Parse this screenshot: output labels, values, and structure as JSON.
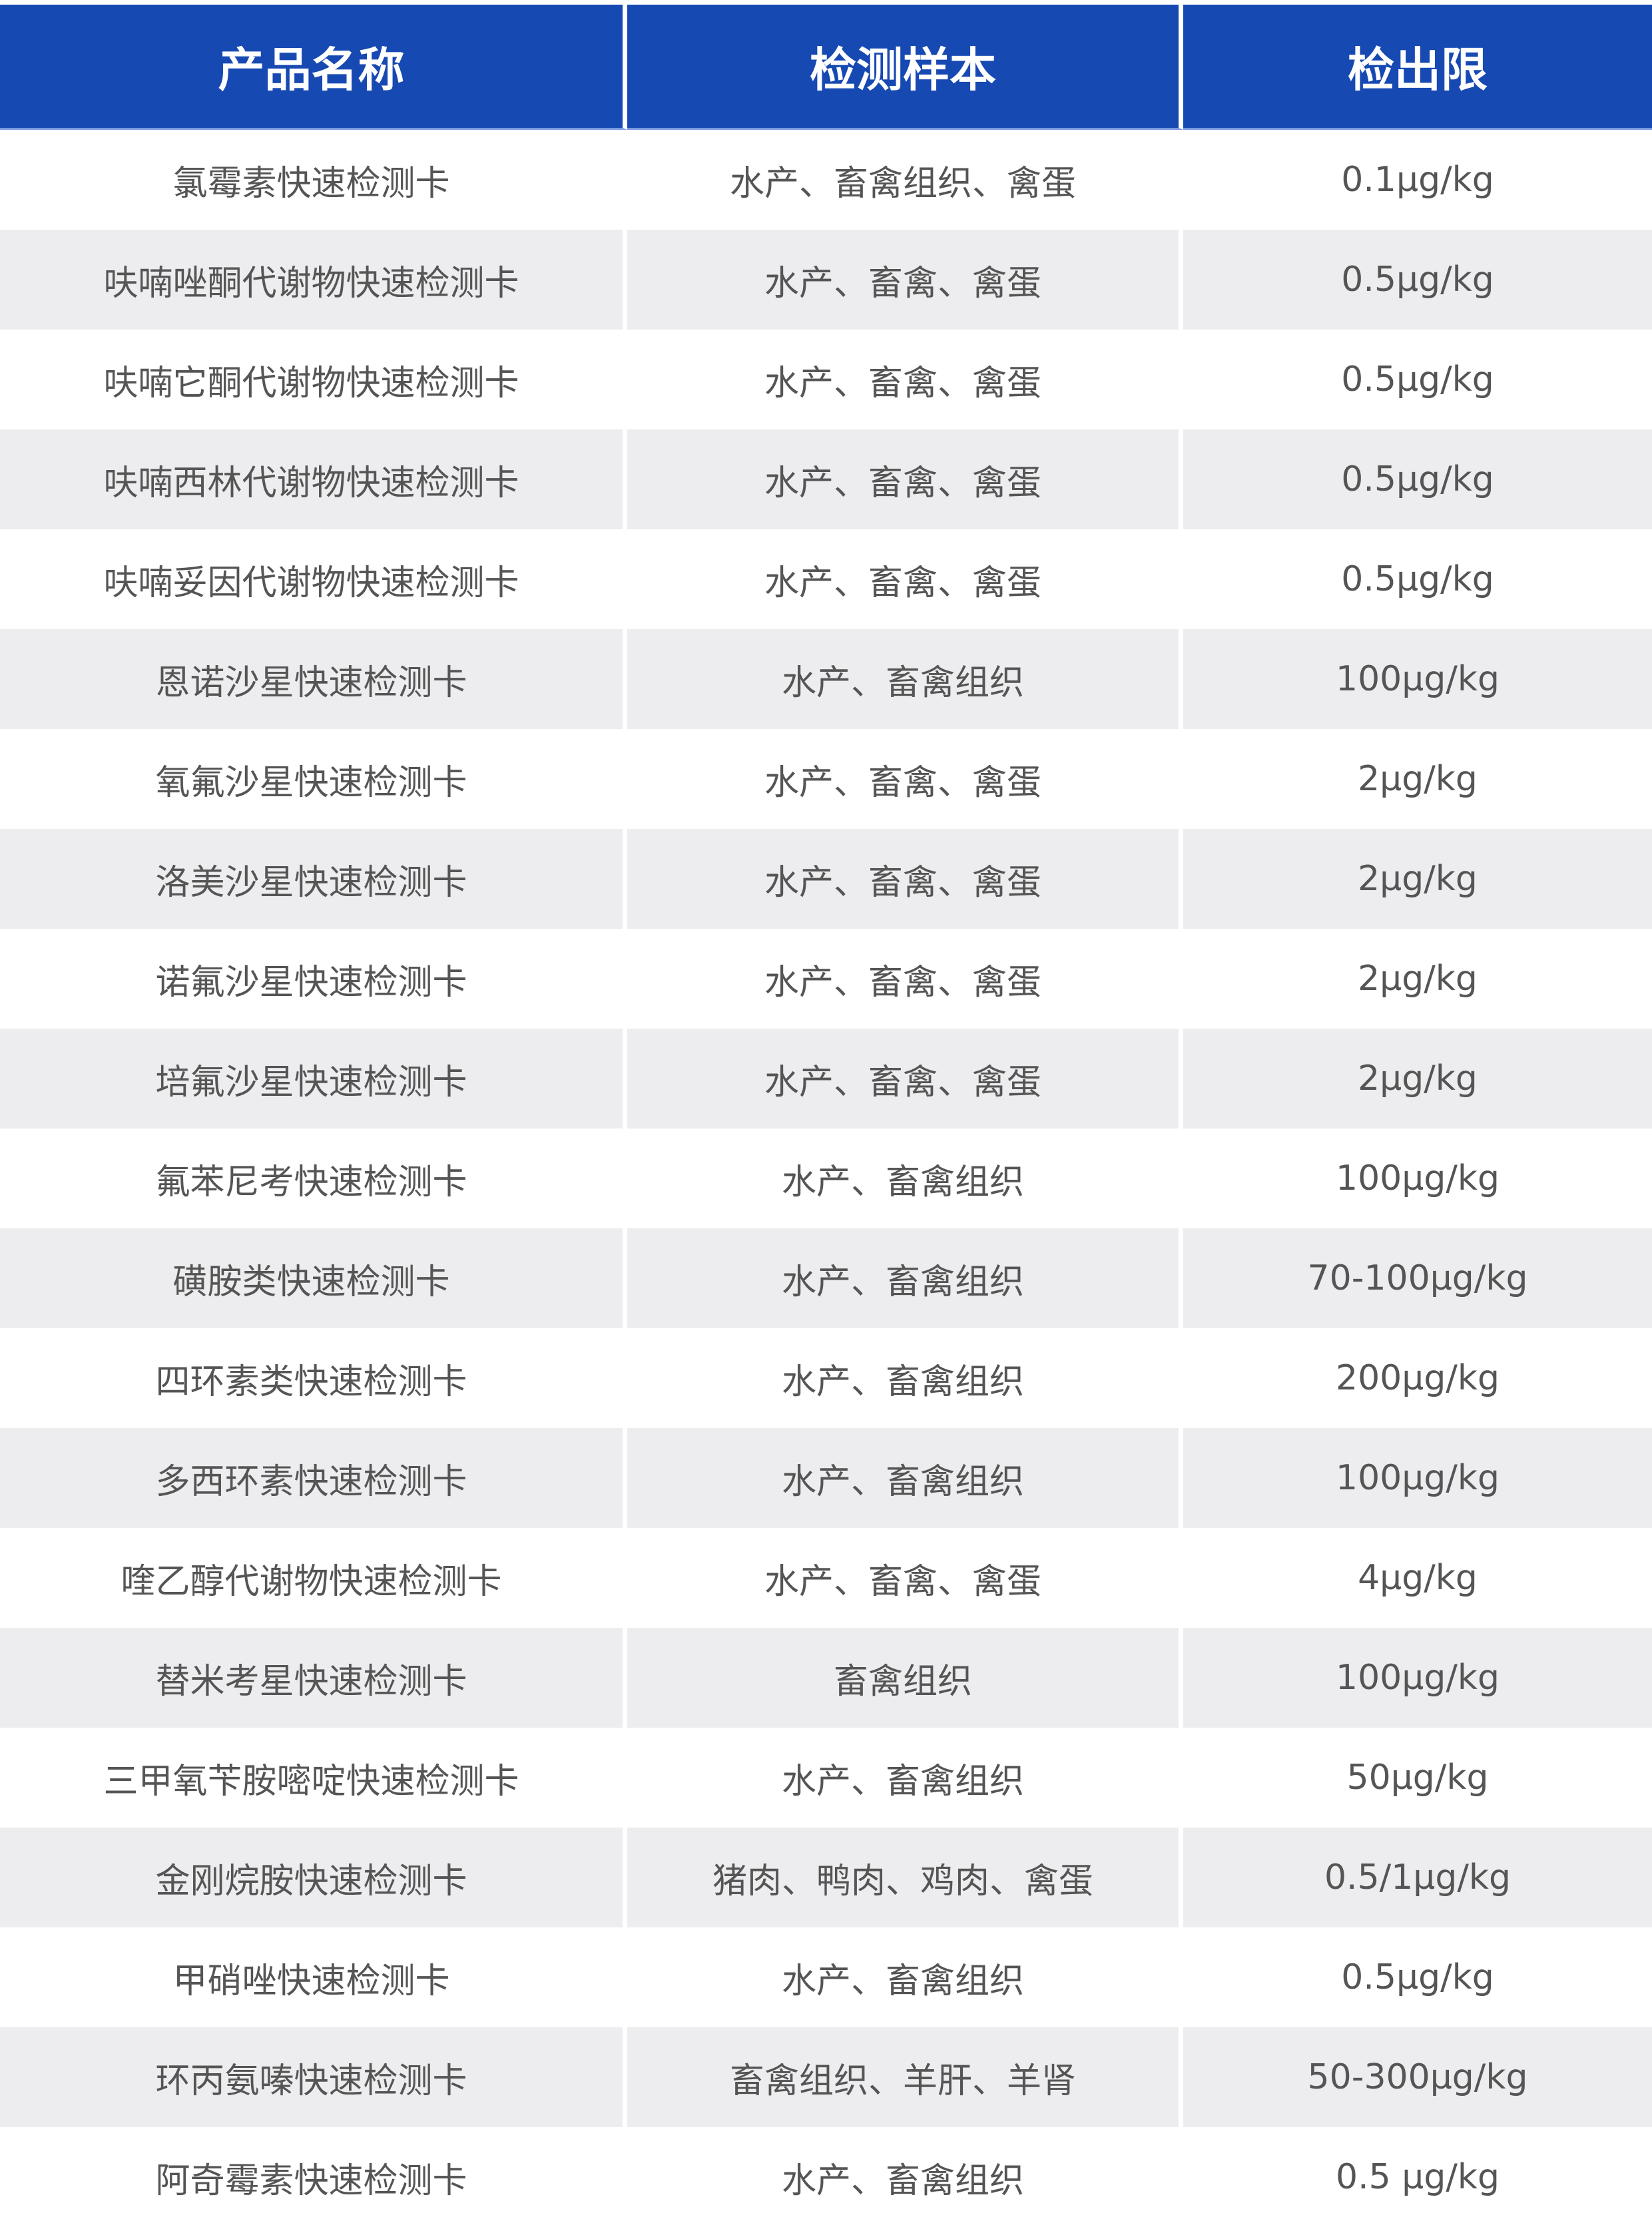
{
  "header": {
    "col1": "产品名称",
    "col2": "检测样本",
    "col3": "检出限"
  },
  "colors": {
    "header_bg": "#1749b3",
    "stripe_bg": "#ededef",
    "text": "#555555"
  },
  "rows": [
    [
      "氯霉素快速检测卡",
      "水产、畜禽组织、禽蛋",
      "0.1μg/kg"
    ],
    [
      "呋喃唑酮代谢物快速检测卡",
      "水产、畜禽、禽蛋",
      "0.5μg/kg"
    ],
    [
      "呋喃它酮代谢物快速检测卡",
      "水产、畜禽、禽蛋",
      "0.5μg/kg"
    ],
    [
      "呋喃西林代谢物快速检测卡",
      "水产、畜禽、禽蛋",
      "0.5μg/kg"
    ],
    [
      "呋喃妥因代谢物快速检测卡",
      "水产、畜禽、禽蛋",
      "0.5μg/kg"
    ],
    [
      "恩诺沙星快速检测卡",
      "水产、畜禽组织",
      "100μg/kg"
    ],
    [
      "氧氟沙星快速检测卡",
      "水产、畜禽、禽蛋",
      "2μg/kg"
    ],
    [
      "洛美沙星快速检测卡",
      "水产、畜禽、禽蛋",
      "2μg/kg"
    ],
    [
      "诺氟沙星快速检测卡",
      "水产、畜禽、禽蛋",
      "2μg/kg"
    ],
    [
      "培氟沙星快速检测卡",
      "水产、畜禽、禽蛋",
      "2μg/kg"
    ],
    [
      "氟苯尼考快速检测卡",
      "水产、畜禽组织",
      "100μg/kg"
    ],
    [
      "磺胺类快速检测卡",
      "水产、畜禽组织",
      "70-100μg/kg"
    ],
    [
      "四环素类快速检测卡",
      "水产、畜禽组织",
      "200μg/kg"
    ],
    [
      "多西环素快速检测卡",
      "水产、畜禽组织",
      "100μg/kg"
    ],
    [
      "喹乙醇代谢物快速检测卡",
      "水产、畜禽、禽蛋",
      "4μg/kg"
    ],
    [
      "替米考星快速检测卡",
      "畜禽组织",
      "100μg/kg"
    ],
    [
      "三甲氧苄胺嘧啶快速检测卡",
      "水产、畜禽组织",
      "50μg/kg"
    ],
    [
      "金刚烷胺快速检测卡",
      "猪肉、鸭肉、鸡肉、禽蛋",
      "0.5/1μg/kg"
    ],
    [
      "甲硝唑快速检测卡",
      "水产、畜禽组织",
      "0.5μg/kg"
    ],
    [
      "环丙氨嗪快速检测卡",
      "畜禽组织、羊肝、羊肾",
      "50-300μg/kg"
    ],
    [
      "阿奇霉素快速检测卡",
      "水产、畜禽组织",
      "0.5 μg/kg"
    ]
  ]
}
